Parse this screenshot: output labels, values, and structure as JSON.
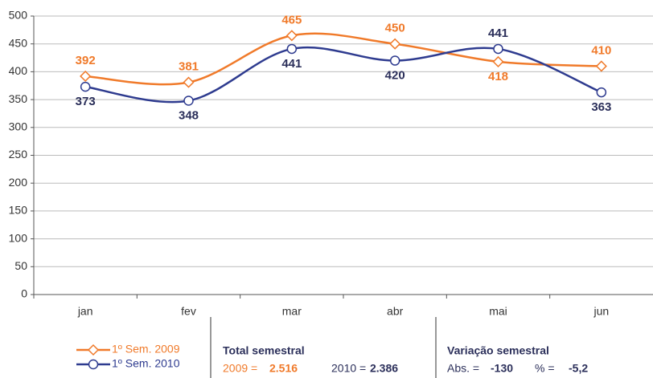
{
  "chart_data": {
    "type": "line",
    "categories": [
      "jan",
      "fev",
      "mar",
      "abr",
      "mai",
      "jun"
    ],
    "series": [
      {
        "name": "1º Sem. 2009",
        "color": "#f07a2a",
        "values": [
          392,
          381,
          465,
          450,
          418,
          410
        ]
      },
      {
        "name": "1º Sem. 2010",
        "color": "#2e3b8f",
        "values": [
          373,
          348,
          441,
          420,
          441,
          363
        ]
      }
    ],
    "ylim": [
      0,
      500
    ],
    "yticks": [
      0,
      50,
      100,
      150,
      200,
      250,
      300,
      350,
      400,
      450,
      500
    ],
    "grid": true,
    "totals": {
      "title": "Total semestral",
      "items": [
        {
          "label": "2009 =",
          "value": "2.516"
        },
        {
          "label": "2010 =",
          "value": "2.386"
        }
      ]
    },
    "variation": {
      "title": "Variação semestral",
      "items": [
        {
          "label": "Abs. =",
          "value": "-130"
        },
        {
          "label": "% =",
          "value": "-5,2"
        }
      ]
    }
  }
}
